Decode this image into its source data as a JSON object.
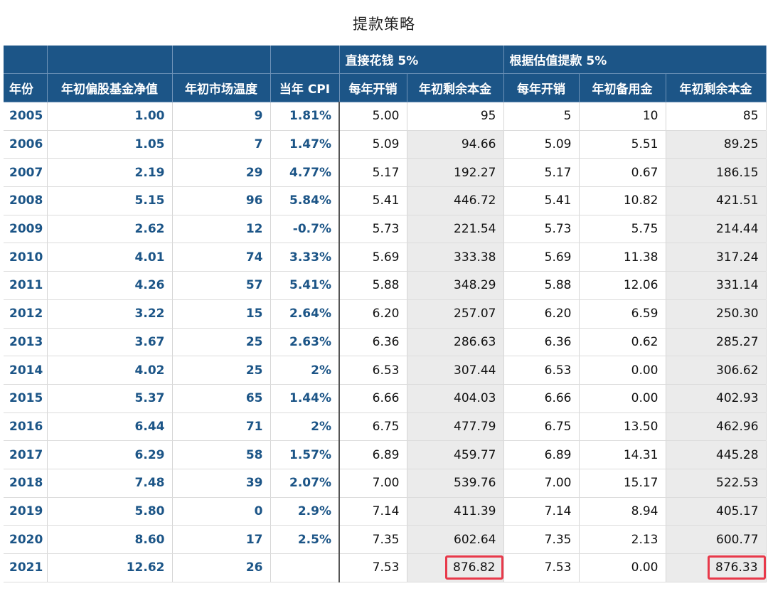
{
  "title": "提款策略",
  "group_headers": [
    "",
    "",
    "",
    "",
    "直接花钱 5%",
    "根据估值提款 5%"
  ],
  "columns": [
    "年份",
    "年初偏股基金净值",
    "年初市场温度",
    "当年 CPI",
    "每年开销",
    "年初剩余本金",
    "每年开销",
    "年初备用金",
    "年初剩余本金"
  ],
  "rows": [
    [
      "2005",
      "1.00",
      "9",
      "1.81%",
      "5.00",
      "95",
      "5",
      "10",
      "85"
    ],
    [
      "2006",
      "1.05",
      "7",
      "1.47%",
      "5.09",
      "94.66",
      "5.09",
      "5.51",
      "89.25"
    ],
    [
      "2007",
      "2.19",
      "29",
      "4.77%",
      "5.17",
      "192.27",
      "5.17",
      "0.67",
      "186.15"
    ],
    [
      "2008",
      "5.15",
      "96",
      "5.84%",
      "5.41",
      "446.72",
      "5.41",
      "10.82",
      "421.51"
    ],
    [
      "2009",
      "2.62",
      "12",
      "-0.7%",
      "5.73",
      "221.54",
      "5.73",
      "5.75",
      "214.44"
    ],
    [
      "2010",
      "4.01",
      "74",
      "3.33%",
      "5.69",
      "333.38",
      "5.69",
      "11.38",
      "317.24"
    ],
    [
      "2011",
      "4.26",
      "57",
      "5.41%",
      "5.88",
      "348.29",
      "5.88",
      "12.06",
      "331.14"
    ],
    [
      "2012",
      "3.22",
      "15",
      "2.64%",
      "6.20",
      "257.07",
      "6.20",
      "6.59",
      "250.30"
    ],
    [
      "2013",
      "3.67",
      "25",
      "2.63%",
      "6.36",
      "286.63",
      "6.36",
      "0.62",
      "285.27"
    ],
    [
      "2014",
      "4.02",
      "25",
      "2%",
      "6.53",
      "307.44",
      "6.53",
      "0.00",
      "306.62"
    ],
    [
      "2015",
      "5.37",
      "65",
      "1.44%",
      "6.66",
      "404.03",
      "6.66",
      "0.00",
      "402.93"
    ],
    [
      "2016",
      "6.44",
      "71",
      "2%",
      "6.75",
      "477.79",
      "6.75",
      "13.50",
      "462.96"
    ],
    [
      "2017",
      "6.29",
      "58",
      "1.57%",
      "6.89",
      "459.77",
      "6.89",
      "14.31",
      "445.28"
    ],
    [
      "2018",
      "7.48",
      "39",
      "2.07%",
      "7.00",
      "539.76",
      "7.00",
      "15.17",
      "522.53"
    ],
    [
      "2019",
      "5.80",
      "0",
      "2.9%",
      "7.14",
      "411.39",
      "7.14",
      "8.94",
      "405.17"
    ],
    [
      "2020",
      "8.60",
      "17",
      "2.5%",
      "7.35",
      "602.64",
      "7.35",
      "2.13",
      "600.77"
    ],
    [
      "2021",
      "12.62",
      "26",
      "",
      "7.53",
      "876.82",
      "7.53",
      "0.00",
      "876.33"
    ]
  ],
  "highlighted_cells": [
    [
      16,
      5
    ],
    [
      16,
      8
    ]
  ],
  "colors": {
    "header_bg": "#1c5587",
    "accent_text": "#1c5587",
    "shade_bg": "#ebebeb",
    "highlight_border": "#e8394a"
  }
}
